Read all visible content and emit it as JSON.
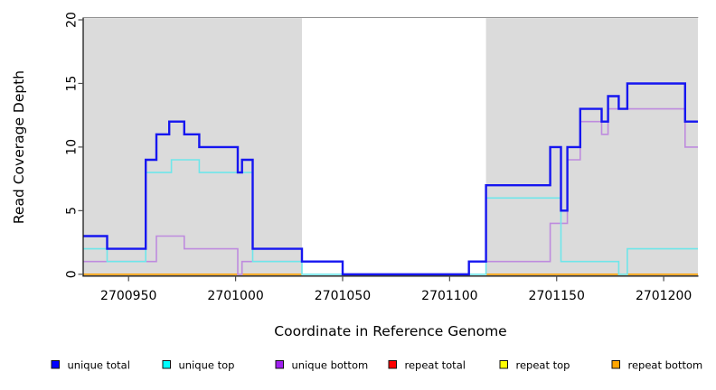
{
  "chart_data": {
    "type": "line",
    "subtype": "step-coverage",
    "xlabel": "Coordinate in Reference Genome",
    "ylabel": "Read Coverage Depth",
    "xlim": [
      2700929,
      2701216
    ],
    "ylim": [
      0,
      20
    ],
    "xticks": [
      2700950,
      2701000,
      2701050,
      2701100,
      2701150,
      2701200
    ],
    "yticks": [
      0,
      5,
      10,
      15,
      20
    ],
    "grid": false,
    "legend_position": "bottom",
    "panel_background": "#ffffff",
    "shaded_regions": [
      {
        "from": 2700929,
        "to": 2701031,
        "color": "#DBDBDB"
      },
      {
        "from": 2701117,
        "to": 2701216,
        "color": "#DBDBDB"
      }
    ],
    "series": [
      {
        "name": "repeat total",
        "legend_color": "#FF0000",
        "line_color": "#EE0000",
        "width": 1.3,
        "parts": [
          {
            "steps": [
              [
                2700929,
                0
              ]
            ],
            "end": 2701031
          },
          {
            "steps": [
              [
                2701117,
                0
              ]
            ],
            "end": 2701216
          }
        ]
      },
      {
        "name": "repeat top",
        "legend_color": "#FFFF00",
        "line_color": "#FFFF00",
        "width": 1.3,
        "parts": [
          {
            "steps": [
              [
                2700929,
                0
              ]
            ],
            "end": 2701031
          },
          {
            "steps": [
              [
                2701117,
                0
              ]
            ],
            "end": 2701216
          }
        ]
      },
      {
        "name": "repeat bottom",
        "legend_color": "#FFA500",
        "line_color": "#FFA000",
        "width": 1.7,
        "parts": [
          {
            "steps": [
              [
                2700929,
                0
              ]
            ],
            "end": 2701031
          },
          {
            "steps": [
              [
                2701117,
                0
              ]
            ],
            "end": 2701216
          }
        ]
      },
      {
        "name": "unique bottom",
        "legend_color": "#A020F0",
        "line_color": "#BE8BDE",
        "width": 1.6,
        "parts": [
          {
            "steps": [
              [
                2700929,
                1
              ],
              [
                2700963,
                3
              ],
              [
                2700976,
                2
              ],
              [
                2701001,
                0
              ],
              [
                2701003,
                1
              ],
              [
                2701050,
                0
              ],
              [
                2701109,
                1
              ],
              [
                2701147,
                4
              ],
              [
                2701155,
                9
              ],
              [
                2701161,
                12
              ],
              [
                2701171,
                11
              ],
              [
                2701174,
                13
              ],
              [
                2701210,
                10
              ]
            ],
            "end": 2701216
          }
        ]
      },
      {
        "name": "unique top",
        "legend_color": "#00FFFF",
        "line_color": "#6FE6EA",
        "width": 1.6,
        "parts": [
          {
            "steps": [
              [
                2700929,
                2
              ],
              [
                2700940,
                1
              ],
              [
                2700958,
                8
              ],
              [
                2700970,
                9
              ],
              [
                2700983,
                8
              ],
              [
                2701008,
                1
              ],
              [
                2701031,
                0
              ],
              [
                2701117,
                6
              ],
              [
                2701152,
                1
              ],
              [
                2701179,
                0
              ],
              [
                2701183,
                2
              ]
            ],
            "end": 2701216
          }
        ]
      },
      {
        "name": "unique total",
        "legend_color": "#0000FF",
        "line_color": "#1616F0",
        "width": 2.4,
        "parts": [
          {
            "steps": [
              [
                2700929,
                3
              ],
              [
                2700940,
                2
              ],
              [
                2700958,
                9
              ],
              [
                2700963,
                11
              ],
              [
                2700969,
                12
              ],
              [
                2700976,
                11
              ],
              [
                2700983,
                10
              ],
              [
                2701001,
                8
              ],
              [
                2701003,
                9
              ],
              [
                2701008,
                2
              ],
              [
                2701031,
                1
              ],
              [
                2701050,
                0
              ],
              [
                2701109,
                1
              ],
              [
                2701117,
                7
              ],
              [
                2701147,
                10
              ],
              [
                2701152,
                5
              ],
              [
                2701155,
                10
              ],
              [
                2701161,
                13
              ],
              [
                2701171,
                12
              ],
              [
                2701174,
                14
              ],
              [
                2701179,
                13
              ],
              [
                2701183,
                15
              ],
              [
                2701210,
                12
              ]
            ],
            "end": 2701216
          }
        ]
      }
    ],
    "legend": [
      {
        "label": "unique total",
        "color": "#0000FF"
      },
      {
        "label": "unique top",
        "color": "#00FFFF"
      },
      {
        "label": "unique bottom",
        "color": "#A020F0"
      },
      {
        "label": "repeat total",
        "color": "#FF0000"
      },
      {
        "label": "repeat top",
        "color": "#FFFF00"
      },
      {
        "label": "repeat bottom",
        "color": "#FFA500"
      }
    ]
  }
}
